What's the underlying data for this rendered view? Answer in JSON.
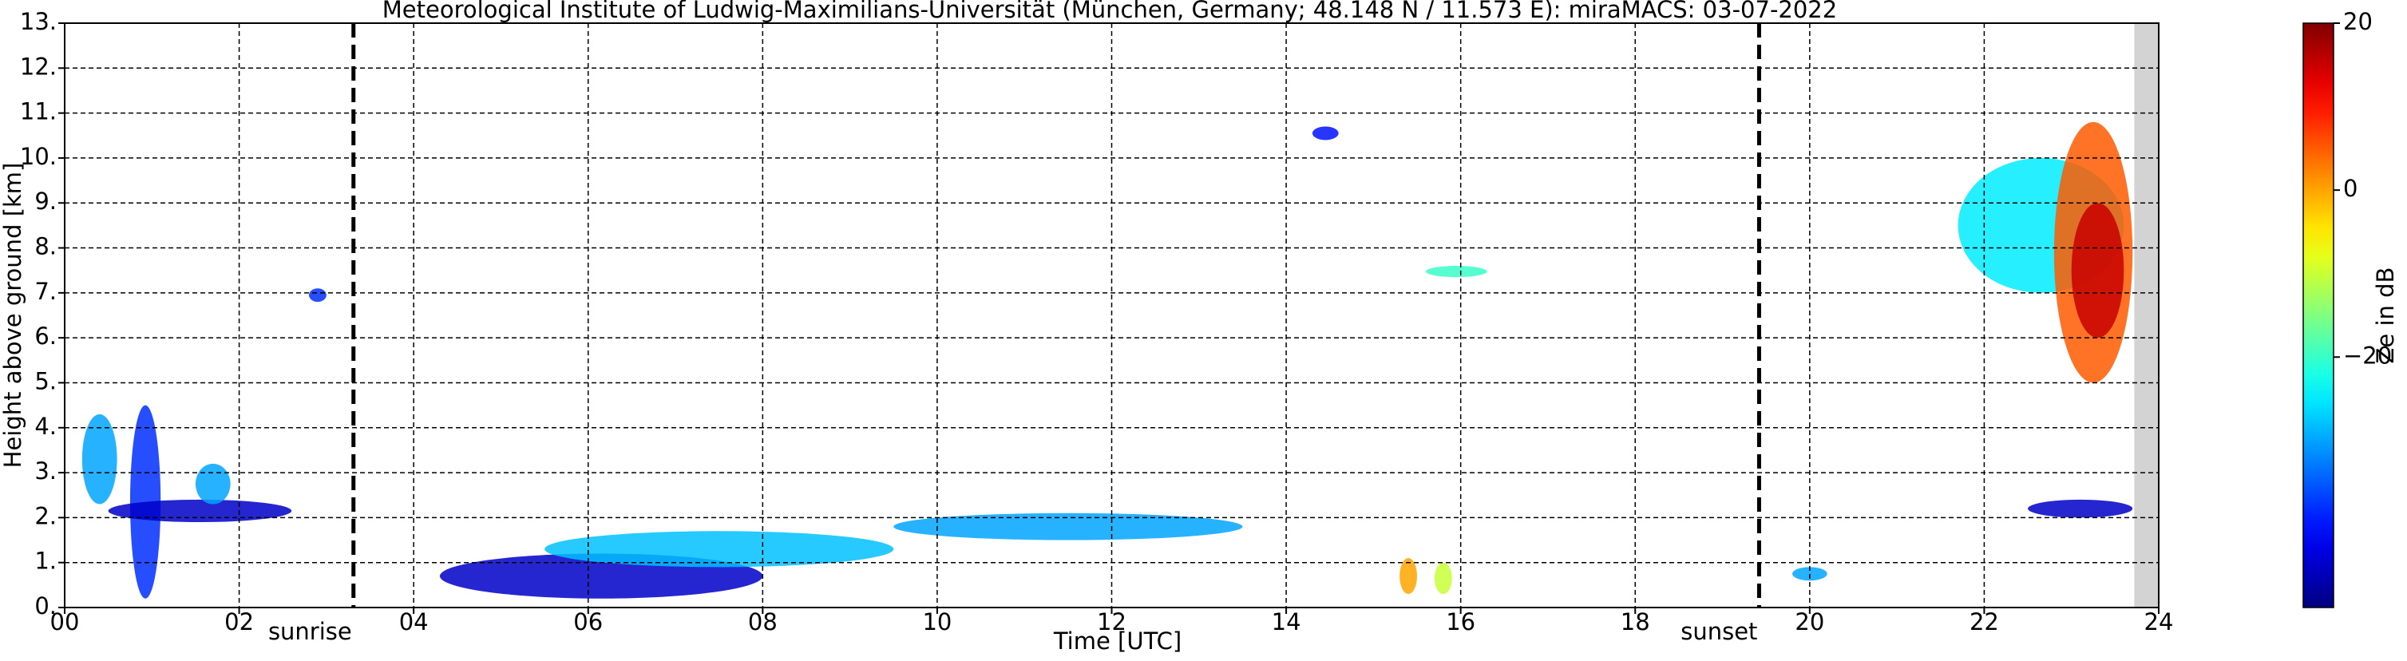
{
  "chart_data": {
    "type": "heatmap",
    "title": "Meteorological Institute of Ludwig-Maximilians-Universität (München, Germany; 48.148 N / 11.573 E):    miraMACS: 03-07-2022",
    "x_label": "Time [UTC]",
    "y_label": "Height above ground [km]",
    "colorbar_label": "Ze in dB",
    "colormap": "jet",
    "grid": true,
    "xlim": [
      0,
      24
    ],
    "xticks": [
      {
        "value": 0,
        "label": "00"
      },
      {
        "value": 2,
        "label": "02"
      },
      {
        "value": 4,
        "label": "04"
      },
      {
        "value": 6,
        "label": "06"
      },
      {
        "value": 8,
        "label": "08"
      },
      {
        "value": 10,
        "label": "10"
      },
      {
        "value": 12,
        "label": "12"
      },
      {
        "value": 14,
        "label": "14"
      },
      {
        "value": 16,
        "label": "16"
      },
      {
        "value": 18,
        "label": "18"
      },
      {
        "value": 20,
        "label": "20"
      },
      {
        "value": 22,
        "label": "22"
      },
      {
        "value": 24,
        "label": "24"
      }
    ],
    "ylim": [
      0,
      13
    ],
    "yticks": [
      {
        "value": 0,
        "label": "0."
      },
      {
        "value": 1,
        "label": "1."
      },
      {
        "value": 2,
        "label": "2."
      },
      {
        "value": 3,
        "label": "3."
      },
      {
        "value": 4,
        "label": "4."
      },
      {
        "value": 5,
        "label": "5."
      },
      {
        "value": 6,
        "label": "6."
      },
      {
        "value": 7,
        "label": "7."
      },
      {
        "value": 8,
        "label": "8."
      },
      {
        "value": 9,
        "label": "9."
      },
      {
        "value": 10,
        "label": "10."
      },
      {
        "value": 11,
        "label": "11."
      },
      {
        "value": 12,
        "label": "12."
      },
      {
        "value": 13,
        "label": "13."
      }
    ],
    "clim": [
      -50,
      20
    ],
    "cticks": [
      20,
      0,
      {
        "value": -20,
        "label": "−20"
      }
    ],
    "events": [
      {
        "label": "sunrise",
        "x": 3.31
      },
      {
        "label": "sunset",
        "x": 19.42
      }
    ],
    "missing": [
      23.72,
      24
    ],
    "echoes": [
      {
        "x": [
          0.2,
          0.6
        ],
        "y": [
          2.3,
          4.3
        ],
        "z": -30
      },
      {
        "x": [
          0.75,
          1.1
        ],
        "y": [
          0.2,
          4.5
        ],
        "z": -38
      },
      {
        "x": [
          0.5,
          2.6
        ],
        "y": [
          1.9,
          2.4
        ],
        "z": -45
      },
      {
        "x": [
          1.5,
          1.9
        ],
        "y": [
          2.3,
          3.2
        ],
        "z": -30
      },
      {
        "x": [
          2.8,
          3.0
        ],
        "y": [
          6.8,
          7.1
        ],
        "z": -38
      },
      {
        "x": [
          4.3,
          8.0
        ],
        "y": [
          0.2,
          1.2
        ],
        "z": -45
      },
      {
        "x": [
          5.5,
          9.5
        ],
        "y": [
          0.9,
          1.7
        ],
        "z": -28
      },
      {
        "x": [
          9.5,
          13.5
        ],
        "y": [
          1.5,
          2.1
        ],
        "z": -30
      },
      {
        "x": [
          14.3,
          14.6
        ],
        "y": [
          10.4,
          10.7
        ],
        "z": -40
      },
      {
        "x": [
          15.6,
          16.3
        ],
        "y": [
          7.35,
          7.6
        ],
        "z": -20
      },
      {
        "x": [
          15.3,
          15.5
        ],
        "y": [
          0.3,
          1.1
        ],
        "z": 0
      },
      {
        "x": [
          15.7,
          15.9
        ],
        "y": [
          0.3,
          1.0
        ],
        "z": -10
      },
      {
        "x": [
          19.8,
          20.2
        ],
        "y": [
          0.6,
          0.9
        ],
        "z": -30
      },
      {
        "x": [
          21.7,
          23.6
        ],
        "y": [
          7.0,
          10.0
        ],
        "z": -25
      },
      {
        "x": [
          22.8,
          23.7
        ],
        "y": [
          5.0,
          10.8
        ],
        "z": 5
      },
      {
        "x": [
          23.0,
          23.6
        ],
        "y": [
          6.0,
          9.0
        ],
        "z": 15
      },
      {
        "x": [
          22.5,
          23.7
        ],
        "y": [
          2.0,
          2.4
        ],
        "z": -45
      }
    ]
  }
}
